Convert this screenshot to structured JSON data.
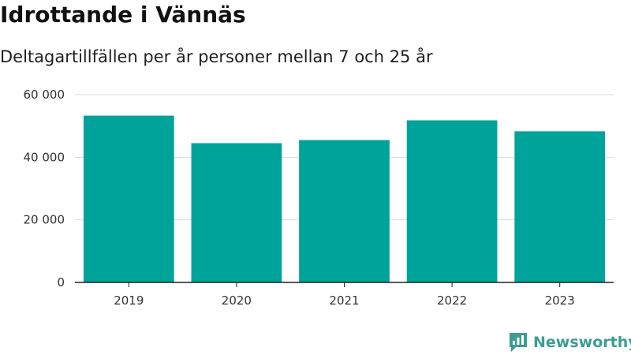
{
  "header": {
    "title": "Idrottande i Vännäs",
    "subtitle": "Deltagartillfällen per år personer mellan 7 och 25 år"
  },
  "chart_data": {
    "type": "bar",
    "categories": [
      "2019",
      "2020",
      "2021",
      "2022",
      "2023"
    ],
    "values": [
      53300,
      44500,
      45500,
      51800,
      48300
    ],
    "ylim": [
      0,
      60000
    ],
    "yticks": [
      0,
      20000,
      40000,
      60000
    ],
    "ytick_labels": [
      "0",
      "20 000",
      "40 000",
      "60 000"
    ],
    "grid": true,
    "legend": "none",
    "colors": {
      "bar": "#00a39a",
      "grid": "#d9d9d9",
      "axis": "#222222"
    }
  },
  "brand": {
    "name": "Newsworthy",
    "icon": "newsworthy-logo-icon",
    "color": "#3a9e92"
  }
}
